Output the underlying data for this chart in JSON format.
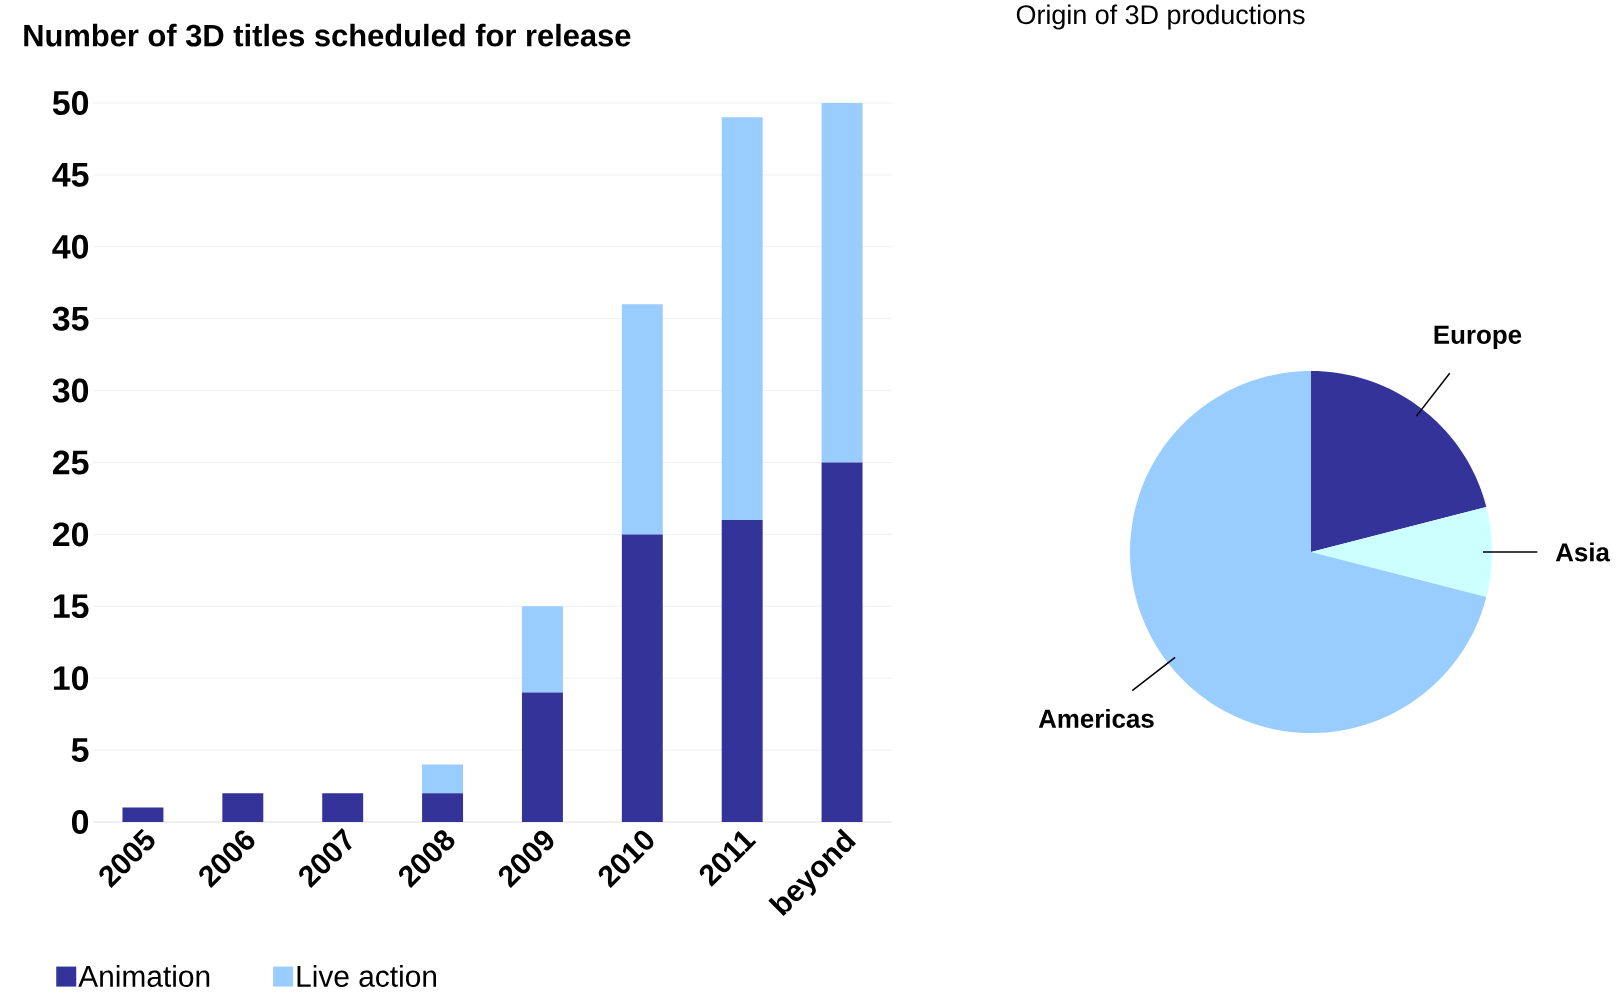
{
  "chart_data": [
    {
      "type": "bar",
      "title": "Number of 3D titles scheduled for release",
      "categories": [
        "2005",
        "2006",
        "2007",
        "2008",
        "2009",
        "2010",
        "2011",
        "beyond"
      ],
      "series": [
        {
          "name": "Animation",
          "color": "#333399",
          "values": [
            1,
            2,
            2,
            2,
            9,
            20,
            21,
            25
          ]
        },
        {
          "name": "Live action",
          "color": "#99ccff",
          "values": [
            0,
            0,
            0,
            2,
            6,
            16,
            28,
            25
          ]
        }
      ],
      "stacked": true,
      "ylim": [
        0,
        50
      ],
      "yticks": [
        0,
        5,
        10,
        15,
        20,
        25,
        30,
        35,
        40,
        45,
        50
      ],
      "grid": "y",
      "legend": "bottom left"
    },
    {
      "type": "pie",
      "title": "Origin of 3D productions",
      "categories": [
        "Europe",
        "Asia",
        "Americas"
      ],
      "values": [
        21,
        8,
        71
      ],
      "colors": [
        "#333399",
        "#ccffff",
        "#99ccff"
      ]
    }
  ]
}
